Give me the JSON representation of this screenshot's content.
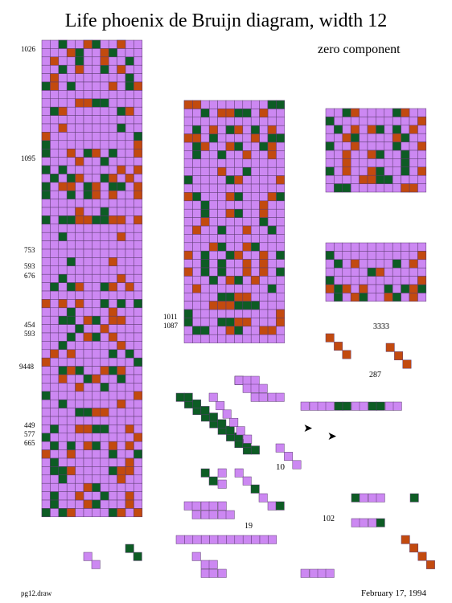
{
  "title": "Life phoenix de Bruijn diagram, width 12",
  "subtitle": "zero component",
  "footer": {
    "left": "pg12.draw",
    "right": "February 17, 1994"
  },
  "colors": {
    "background": "#cc88f2",
    "grid": "#5a3a70",
    "dark": "#0d5c24",
    "orange": "#c24a0f"
  },
  "row_labels": [
    "1026",
    "1095",
    "753",
    "593",
    "676",
    "454",
    "593",
    "9448",
    "449",
    "577",
    "665",
    "1011",
    "1087"
  ],
  "annotations": [
    "zero component",
    "3333",
    "287",
    "10",
    "19",
    "102"
  ],
  "glyphs": {
    "arrow_glyph": "➤"
  }
}
